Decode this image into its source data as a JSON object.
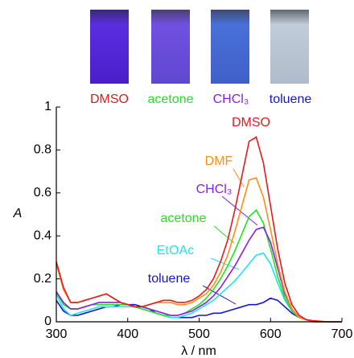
{
  "chart_data": {
    "type": "line",
    "photo_labels": [
      "DMSO",
      "acetone",
      "CHCl₃",
      "toluene"
    ],
    "xlabel": "λ / nm",
    "ylabel": "A",
    "xlim": [
      300,
      700
    ],
    "xticks": [
      300,
      400,
      500,
      600,
      700
    ],
    "ylim": [
      0,
      1
    ],
    "yticks": [
      0,
      0.2,
      0.4,
      0.6,
      0.8,
      1
    ],
    "x": [
      300,
      310,
      320,
      330,
      340,
      350,
      360,
      370,
      380,
      390,
      400,
      410,
      420,
      430,
      440,
      450,
      460,
      470,
      480,
      490,
      500,
      510,
      520,
      530,
      540,
      550,
      560,
      570,
      580,
      590,
      600,
      610,
      620,
      630,
      640,
      650,
      660,
      680,
      700
    ],
    "series": [
      {
        "name": "DMSO",
        "color": "#e41a1c",
        "values": [
          0.28,
          0.16,
          0.09,
          0.09,
          0.1,
          0.11,
          0.12,
          0.13,
          0.11,
          0.09,
          0.08,
          0.07,
          0.07,
          0.08,
          0.09,
          0.1,
          0.1,
          0.09,
          0.09,
          0.1,
          0.12,
          0.15,
          0.2,
          0.28,
          0.38,
          0.52,
          0.68,
          0.84,
          0.86,
          0.74,
          0.54,
          0.34,
          0.18,
          0.08,
          0.03,
          0.01,
          0.005,
          0,
          0
        ]
      },
      {
        "name": "DMF",
        "color": "#ff8c1a",
        "values": [
          0.27,
          0.15,
          0.09,
          0.09,
          0.1,
          0.11,
          0.12,
          0.13,
          0.11,
          0.09,
          0.08,
          0.07,
          0.07,
          0.08,
          0.09,
          0.09,
          0.09,
          0.08,
          0.08,
          0.09,
          0.11,
          0.13,
          0.17,
          0.23,
          0.31,
          0.42,
          0.54,
          0.66,
          0.67,
          0.58,
          0.43,
          0.27,
          0.14,
          0.06,
          0.02,
          0.01,
          0,
          0,
          0
        ]
      },
      {
        "name": "CHCl₃",
        "color": "#8a1ee6",
        "values": [
          0.14,
          0.09,
          0.06,
          0.06,
          0.07,
          0.08,
          0.09,
          0.09,
          0.09,
          0.09,
          0.08,
          0.07,
          0.07,
          0.06,
          0.05,
          0.04,
          0.03,
          0.03,
          0.04,
          0.05,
          0.07,
          0.09,
          0.12,
          0.16,
          0.21,
          0.26,
          0.32,
          0.38,
          0.43,
          0.44,
          0.37,
          0.25,
          0.13,
          0.06,
          0.02,
          0.01,
          0,
          0,
          0
        ]
      },
      {
        "name": "acetone",
        "color": "#1ee61e",
        "values": [
          0.14,
          0.08,
          0.06,
          0.06,
          0.07,
          0.08,
          0.08,
          0.08,
          0.08,
          0.08,
          0.08,
          0.07,
          0.06,
          0.05,
          0.04,
          0.03,
          0.03,
          0.03,
          0.04,
          0.06,
          0.08,
          0.11,
          0.15,
          0.2,
          0.26,
          0.33,
          0.41,
          0.49,
          0.52,
          0.46,
          0.34,
          0.21,
          0.11,
          0.05,
          0.02,
          0.01,
          0,
          0,
          0
        ]
      },
      {
        "name": "EtOAc",
        "color": "#1ee6f0",
        "values": [
          0.13,
          0.06,
          0.03,
          0.04,
          0.05,
          0.06,
          0.07,
          0.07,
          0.07,
          0.07,
          0.07,
          0.07,
          0.06,
          0.05,
          0.04,
          0.03,
          0.02,
          0.02,
          0.03,
          0.04,
          0.06,
          0.08,
          0.1,
          0.13,
          0.16,
          0.19,
          0.23,
          0.27,
          0.31,
          0.32,
          0.27,
          0.18,
          0.1,
          0.05,
          0.02,
          0.01,
          0,
          0,
          0
        ]
      },
      {
        "name": "toluene",
        "color": "#1414d2",
        "values": [
          0.1,
          0.05,
          0.03,
          0.03,
          0.04,
          0.05,
          0.06,
          0.07,
          0.07,
          0.08,
          0.08,
          0.08,
          0.07,
          0.06,
          0.04,
          0.03,
          0.02,
          0.02,
          0.02,
          0.02,
          0.03,
          0.03,
          0.04,
          0.04,
          0.05,
          0.06,
          0.07,
          0.08,
          0.08,
          0.09,
          0.11,
          0.1,
          0.07,
          0.04,
          0.02,
          0.01,
          0,
          0,
          0
        ]
      }
    ]
  }
}
